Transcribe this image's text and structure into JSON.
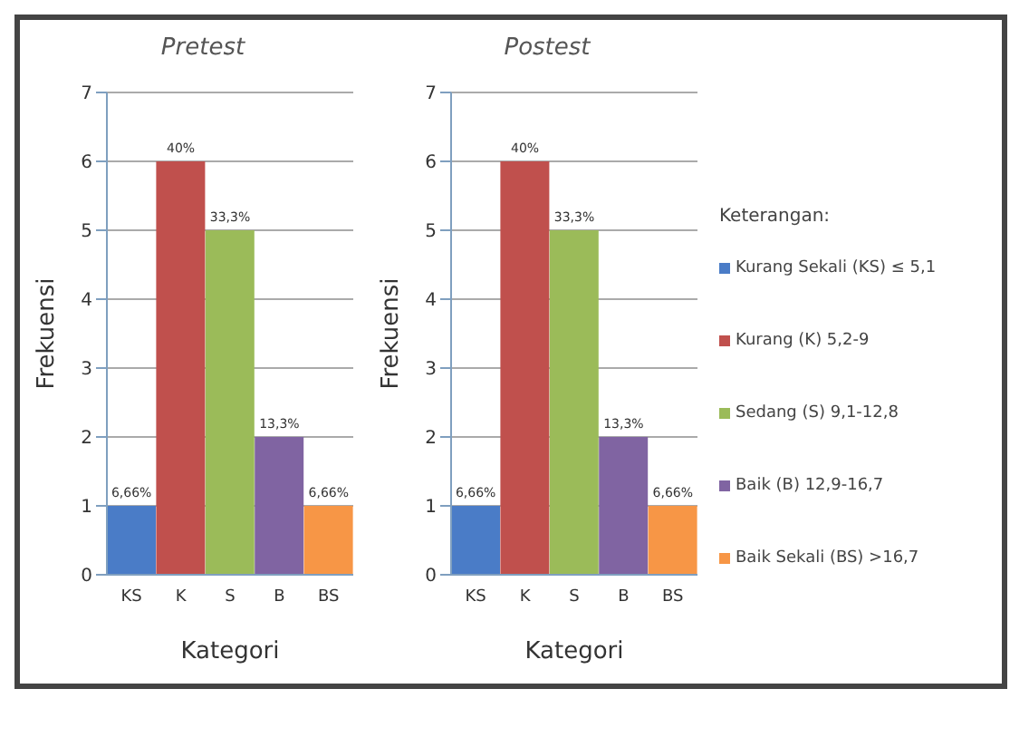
{
  "chart_data": [
    {
      "type": "bar",
      "title": "Pretest",
      "xlabel": "Kategori",
      "ylabel": "Frekuensi",
      "categories": [
        "KS",
        "K",
        "S",
        "B",
        "BS"
      ],
      "values": [
        1,
        6,
        5,
        2,
        1
      ],
      "colors": [
        "#4a7cc7",
        "#c0504d",
        "#9bbb59",
        "#8064a2",
        "#f79646"
      ],
      "annotations": [
        {
          "text": "6,66%",
          "x": "KS",
          "y": 1
        },
        {
          "text": "40%",
          "x": "K",
          "y": 6
        },
        {
          "text": "33,3%",
          "x": "S",
          "y": 5
        },
        {
          "text": "13,3%",
          "x": "B",
          "y": 2
        },
        {
          "text": "6,66%",
          "x": "BS",
          "y": 1
        }
      ],
      "ylim": [
        0,
        7
      ],
      "yticks": [
        0,
        1,
        2,
        3,
        4,
        5,
        6,
        7
      ],
      "grid": "y",
      "legend": false
    },
    {
      "type": "bar",
      "title": "Postest",
      "xlabel": "Kategori",
      "ylabel": "Frekuensi",
      "categories": [
        "KS",
        "K",
        "S",
        "B",
        "BS"
      ],
      "values": [
        1,
        6,
        5,
        2,
        1
      ],
      "colors": [
        "#4a7cc7",
        "#c0504d",
        "#9bbb59",
        "#8064a2",
        "#f79646"
      ],
      "annotations": [
        {
          "text": "6,66%",
          "x": "KS",
          "y": 1
        },
        {
          "text": "40%",
          "x": "K",
          "y": 6
        },
        {
          "text": "33,3%",
          "x": "S",
          "y": 5
        },
        {
          "text": "13,3%",
          "x": "B",
          "y": 2
        },
        {
          "text": "6,66%",
          "x": "BS",
          "y": 1
        }
      ],
      "ylim": [
        0,
        7
      ],
      "yticks": [
        0,
        1,
        2,
        3,
        4,
        5,
        6,
        7
      ],
      "grid": "y",
      "legend": false
    },
    {
      "type": "other",
      "title": "Keterangan:",
      "annotations": [
        "Kurang Sekali (KS) ≤ 5,1",
        "Kurang (K) 5,2-9",
        "Sedang (S) 9,1-12,8",
        "Baik (B) 12,9-16,7",
        "Baik Sekali (BS) >16,7"
      ],
      "colors": [
        "#4a7cc7",
        "#c0504d",
        "#9bbb59",
        "#8064a2",
        "#f79646"
      ]
    }
  ]
}
